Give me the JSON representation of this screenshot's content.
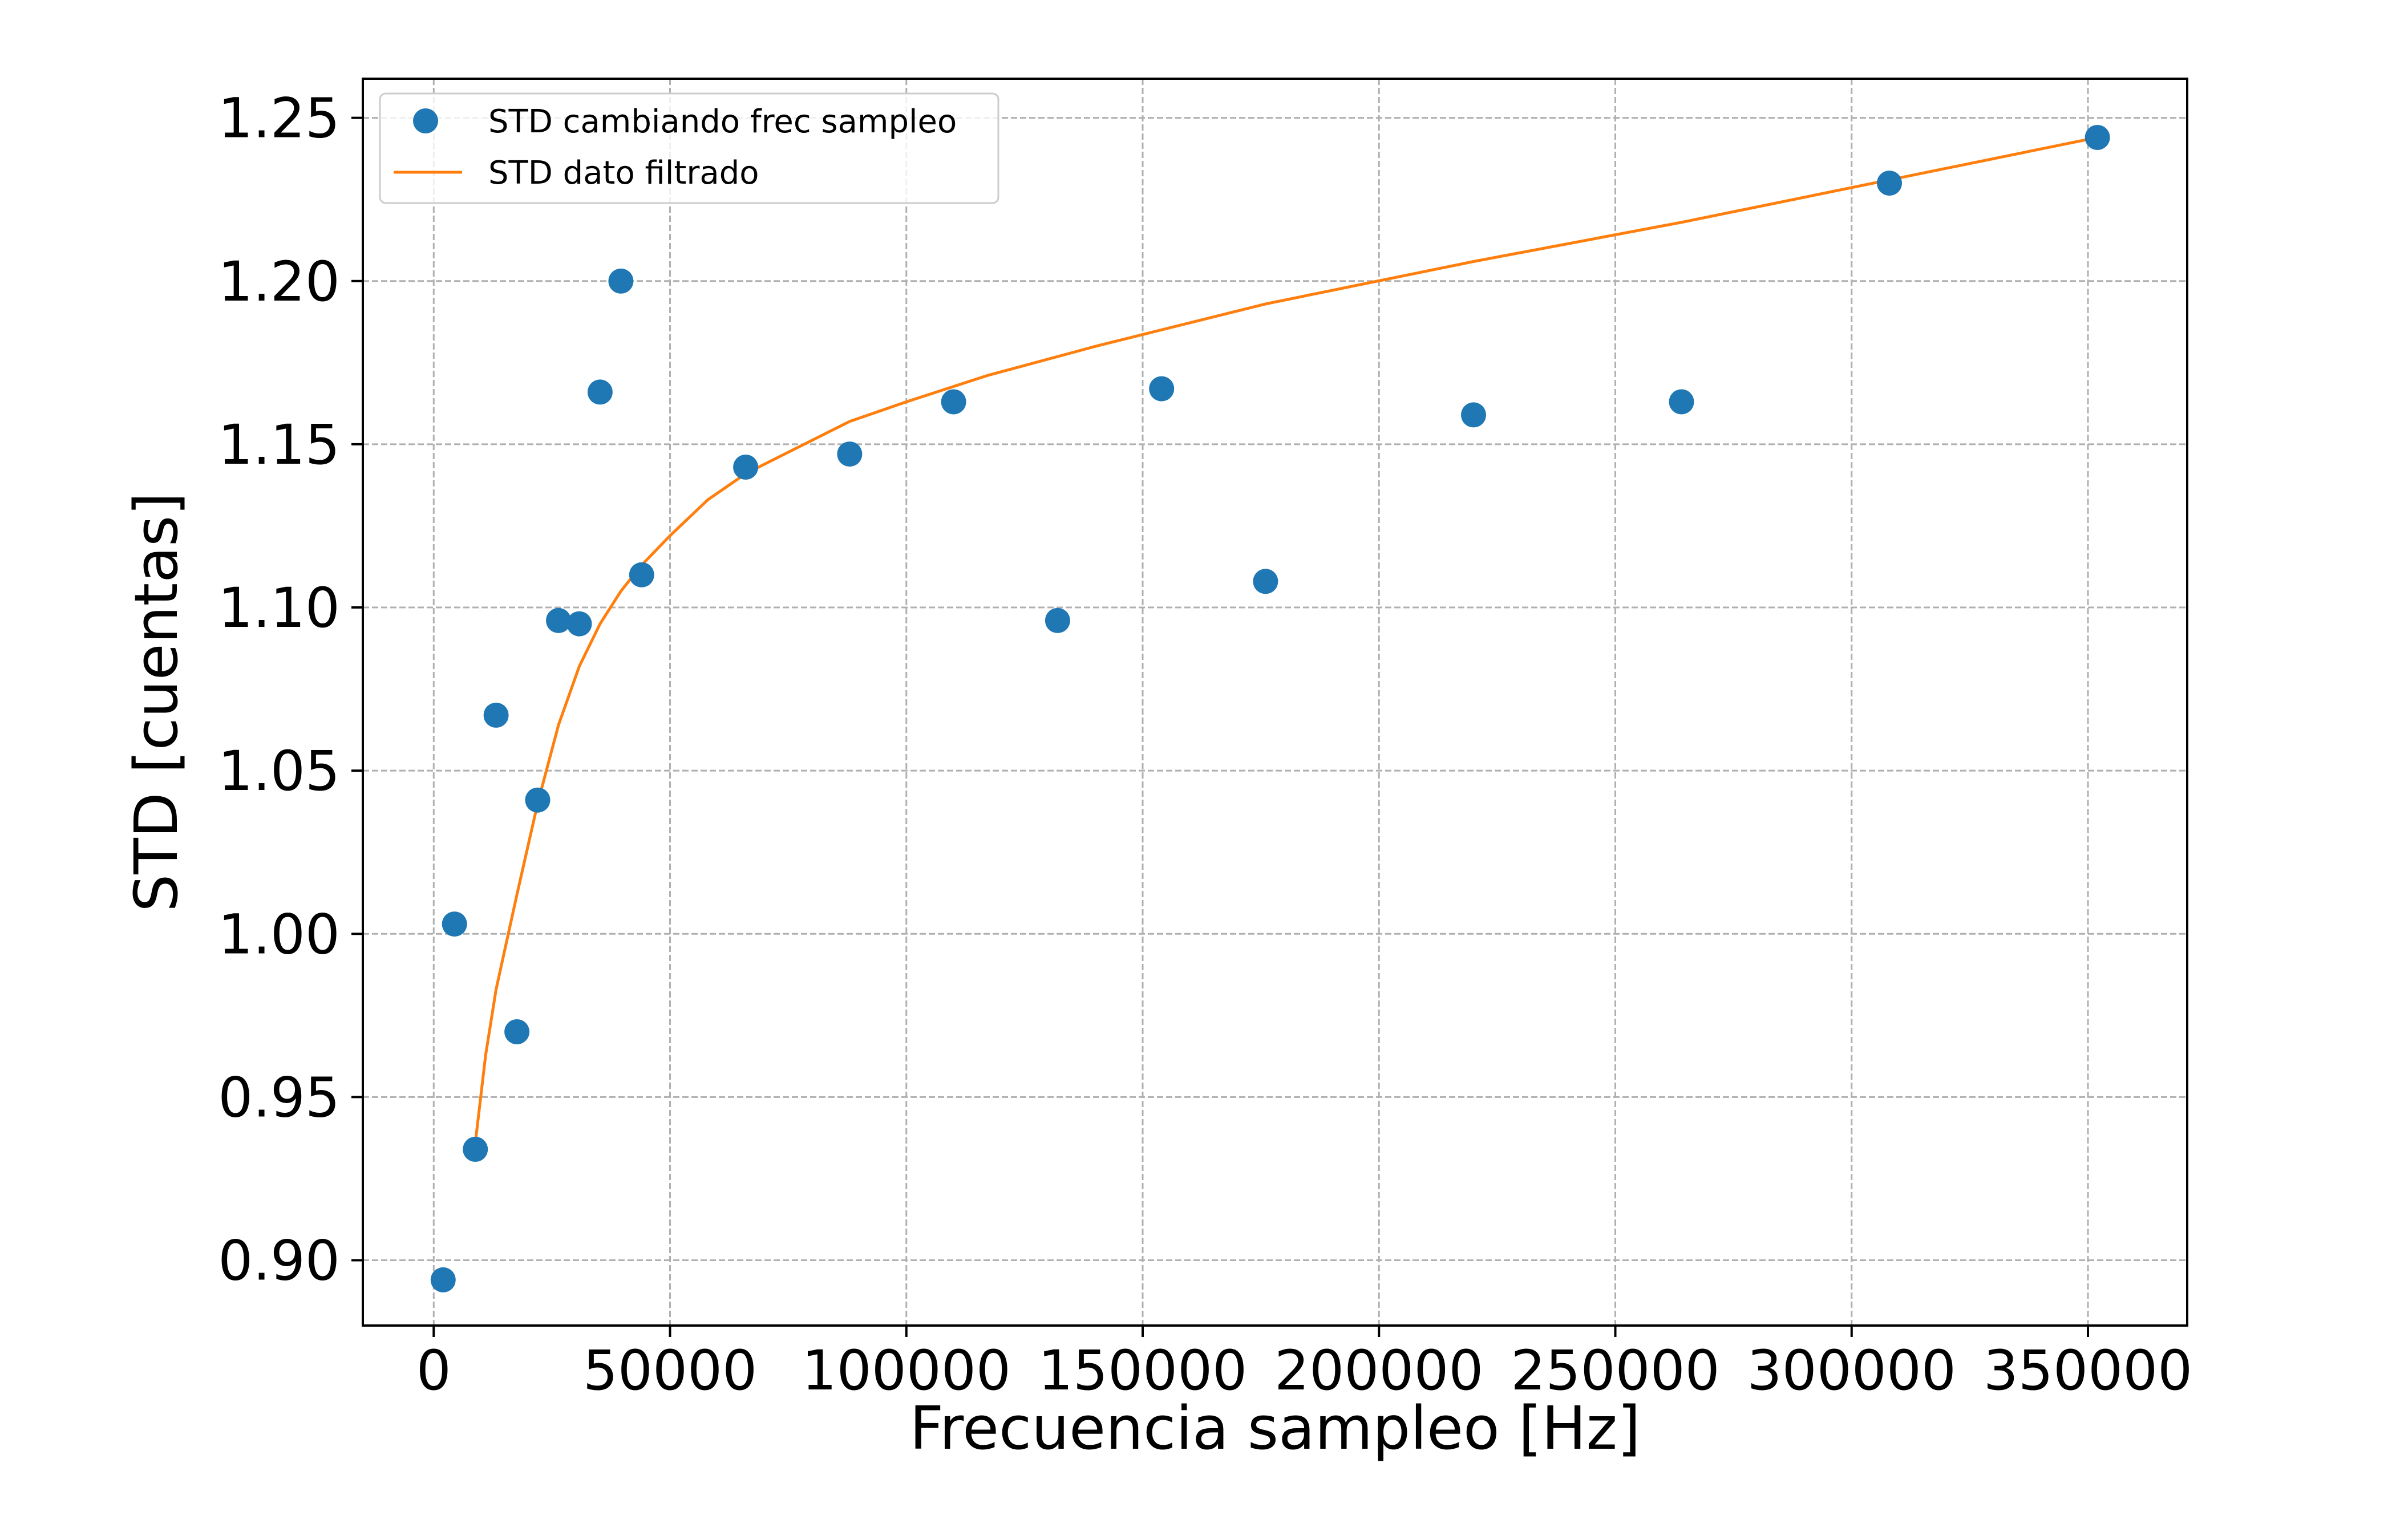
{
  "chart_data": {
    "type": "scatter",
    "xlabel": "Frecuencia sampleo [Hz]",
    "ylabel": "STD [cuentas]",
    "xlim": [
      -15000,
      371000
    ],
    "ylim": [
      0.88,
      1.262
    ],
    "x_ticks": [
      0,
      50000,
      100000,
      150000,
      200000,
      250000,
      300000,
      350000
    ],
    "x_tick_labels": [
      "0",
      "50000",
      "100000",
      "150000",
      "200000",
      "250000",
      "300000",
      "350000"
    ],
    "y_ticks": [
      0.9,
      0.95,
      1.0,
      1.05,
      1.1,
      1.15,
      1.2,
      1.25
    ],
    "y_tick_labels": [
      "0.90",
      "0.95",
      "1.00",
      "1.05",
      "1.10",
      "1.15",
      "1.20",
      "1.25"
    ],
    "grid": true,
    "legend_position": "top-left",
    "series": [
      {
        "name": "STD cambiando frec sampleo",
        "kind": "scatter",
        "color": "#1f77b4",
        "points": [
          [
            2000,
            0.894
          ],
          [
            4400,
            1.003
          ],
          [
            8800,
            0.934
          ],
          [
            13200,
            1.067
          ],
          [
            17600,
            0.97
          ],
          [
            22000,
            1.041
          ],
          [
            26400,
            1.096
          ],
          [
            30800,
            1.095
          ],
          [
            35200,
            1.166
          ],
          [
            39600,
            1.2
          ],
          [
            44000,
            1.11
          ],
          [
            66000,
            1.143
          ],
          [
            88000,
            1.147
          ],
          [
            110000,
            1.163
          ],
          [
            132000,
            1.096
          ],
          [
            154000,
            1.167
          ],
          [
            176000,
            1.108
          ],
          [
            220000,
            1.159
          ],
          [
            264000,
            1.163
          ],
          [
            308000,
            1.23
          ],
          [
            352000,
            1.244
          ]
        ]
      },
      {
        "name": "STD dato filtrado",
        "kind": "line",
        "color": "#ff7f0e",
        "points": [
          [
            8800,
            0.936
          ],
          [
            11000,
            0.963
          ],
          [
            13200,
            0.983
          ],
          [
            17600,
            1.012
          ],
          [
            22000,
            1.04
          ],
          [
            26400,
            1.064
          ],
          [
            30800,
            1.082
          ],
          [
            35200,
            1.095
          ],
          [
            39600,
            1.105
          ],
          [
            44000,
            1.113
          ],
          [
            50000,
            1.122
          ],
          [
            58000,
            1.133
          ],
          [
            66000,
            1.141
          ],
          [
            77000,
            1.149
          ],
          [
            88000,
            1.157
          ],
          [
            100000,
            1.163
          ],
          [
            117000,
            1.171
          ],
          [
            140000,
            1.18
          ],
          [
            176000,
            1.193
          ],
          [
            220000,
            1.206
          ],
          [
            264000,
            1.218
          ],
          [
            308000,
            1.231
          ],
          [
            352000,
            1.244
          ]
        ]
      }
    ]
  }
}
